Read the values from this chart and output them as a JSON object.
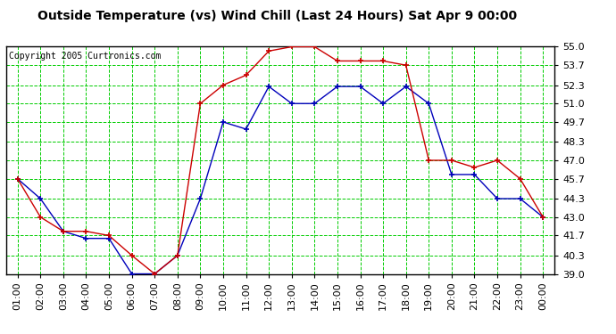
{
  "title": "Outside Temperature (vs) Wind Chill (Last 24 Hours) Sat Apr 9 00:00",
  "copyright": "Copyright 2005 Curtronics.com",
  "x_labels": [
    "01:00",
    "02:00",
    "03:00",
    "04:00",
    "05:00",
    "06:00",
    "07:00",
    "08:00",
    "09:00",
    "10:00",
    "11:00",
    "12:00",
    "13:00",
    "14:00",
    "15:00",
    "16:00",
    "17:00",
    "18:00",
    "19:00",
    "20:00",
    "21:00",
    "22:00",
    "23:00",
    "00:00"
  ],
  "y_ticks": [
    39.0,
    40.3,
    41.7,
    43.0,
    44.3,
    45.7,
    47.0,
    48.3,
    49.7,
    51.0,
    52.3,
    53.7,
    55.0
  ],
  "ylim": [
    39.0,
    55.0
  ],
  "temp_blue": [
    45.7,
    44.3,
    42.0,
    41.5,
    41.5,
    39.0,
    39.0,
    40.3,
    44.3,
    49.7,
    49.2,
    52.2,
    51.0,
    51.0,
    52.2,
    52.2,
    51.0,
    52.2,
    51.0,
    46.0,
    46.0,
    44.3,
    44.3,
    43.0
  ],
  "wind_red": [
    45.7,
    43.0,
    42.0,
    42.0,
    41.7,
    40.3,
    39.0,
    40.3,
    51.0,
    52.3,
    53.0,
    54.7,
    55.0,
    55.0,
    54.0,
    54.0,
    54.0,
    53.7,
    47.0,
    47.0,
    46.5,
    47.0,
    45.7,
    43.0
  ],
  "bg_color": "#ffffff",
  "plot_bg": "#ffffff",
  "grid_color": "#00cc00",
  "line_color_blue": "#0000bb",
  "line_color_red": "#cc0000",
  "title_color": "#000000",
  "border_color": "#000000",
  "title_fontsize": 10,
  "tick_fontsize": 8
}
